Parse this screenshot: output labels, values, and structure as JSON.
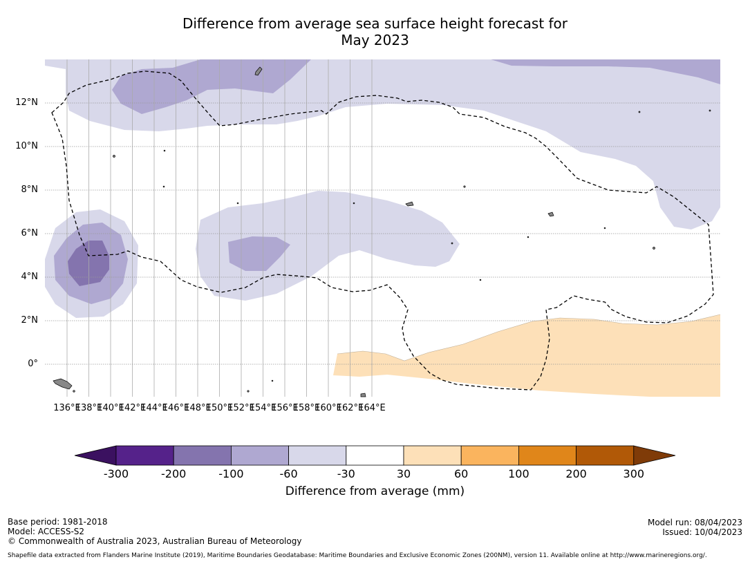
{
  "title": {
    "line1": "Difference from average sea surface height forecast for",
    "line2": "May 2023"
  },
  "map": {
    "longitude_labels": [
      "136°E",
      "138°E",
      "140°E",
      "142°E",
      "144°E",
      "146°E",
      "148°E",
      "150°E",
      "152°E",
      "154°E",
      "156°E",
      "158°E",
      "160°E",
      "162°E",
      "164°E"
    ],
    "latitude_labels": [
      "12°N",
      "10°N",
      "8°N",
      "6°N",
      "4°N",
      "2°N",
      "0°"
    ],
    "shading_regions": [
      {
        "name": "western-low-core",
        "level": "-200 to -100"
      },
      {
        "name": "northern-band",
        "level": "-60 to -30"
      },
      {
        "name": "central-band",
        "level": "-60 to -30"
      },
      {
        "name": "equatorial-high",
        "level": "30 to 60"
      }
    ],
    "boundary_style": "dashed EEZ boundary"
  },
  "colorbar": {
    "ticks": [
      "-300",
      "-200",
      "-100",
      "-60",
      "-30",
      "30",
      "60",
      "100",
      "200",
      "300"
    ],
    "colors": [
      "#3b1160",
      "#55228a",
      "#8474ae",
      "#afa8d1",
      "#d8d8ea",
      "#ffffff",
      "#fde0b8",
      "#fab45e",
      "#e0861a",
      "#b15907",
      "#7f3b08"
    ],
    "label": "Difference from average (mm)"
  },
  "footer": {
    "base_period": "Base period: 1981-2018",
    "model": "Model: ACCESS-S2",
    "copyright": "© Commonwealth of Australia 2023, Australian Bureau of Meteorology",
    "model_run": "Model run: 08/04/2023",
    "issued": "Issued: 10/04/2023",
    "shapefile": "Shapefile data extracted from Flanders Marine Institute (2019), Maritime Boundaries Geodatabase: Maritime Boundaries and Exclusive Economic Zones (200NM), version 11. Available online at http://www.marineregions.org/."
  }
}
